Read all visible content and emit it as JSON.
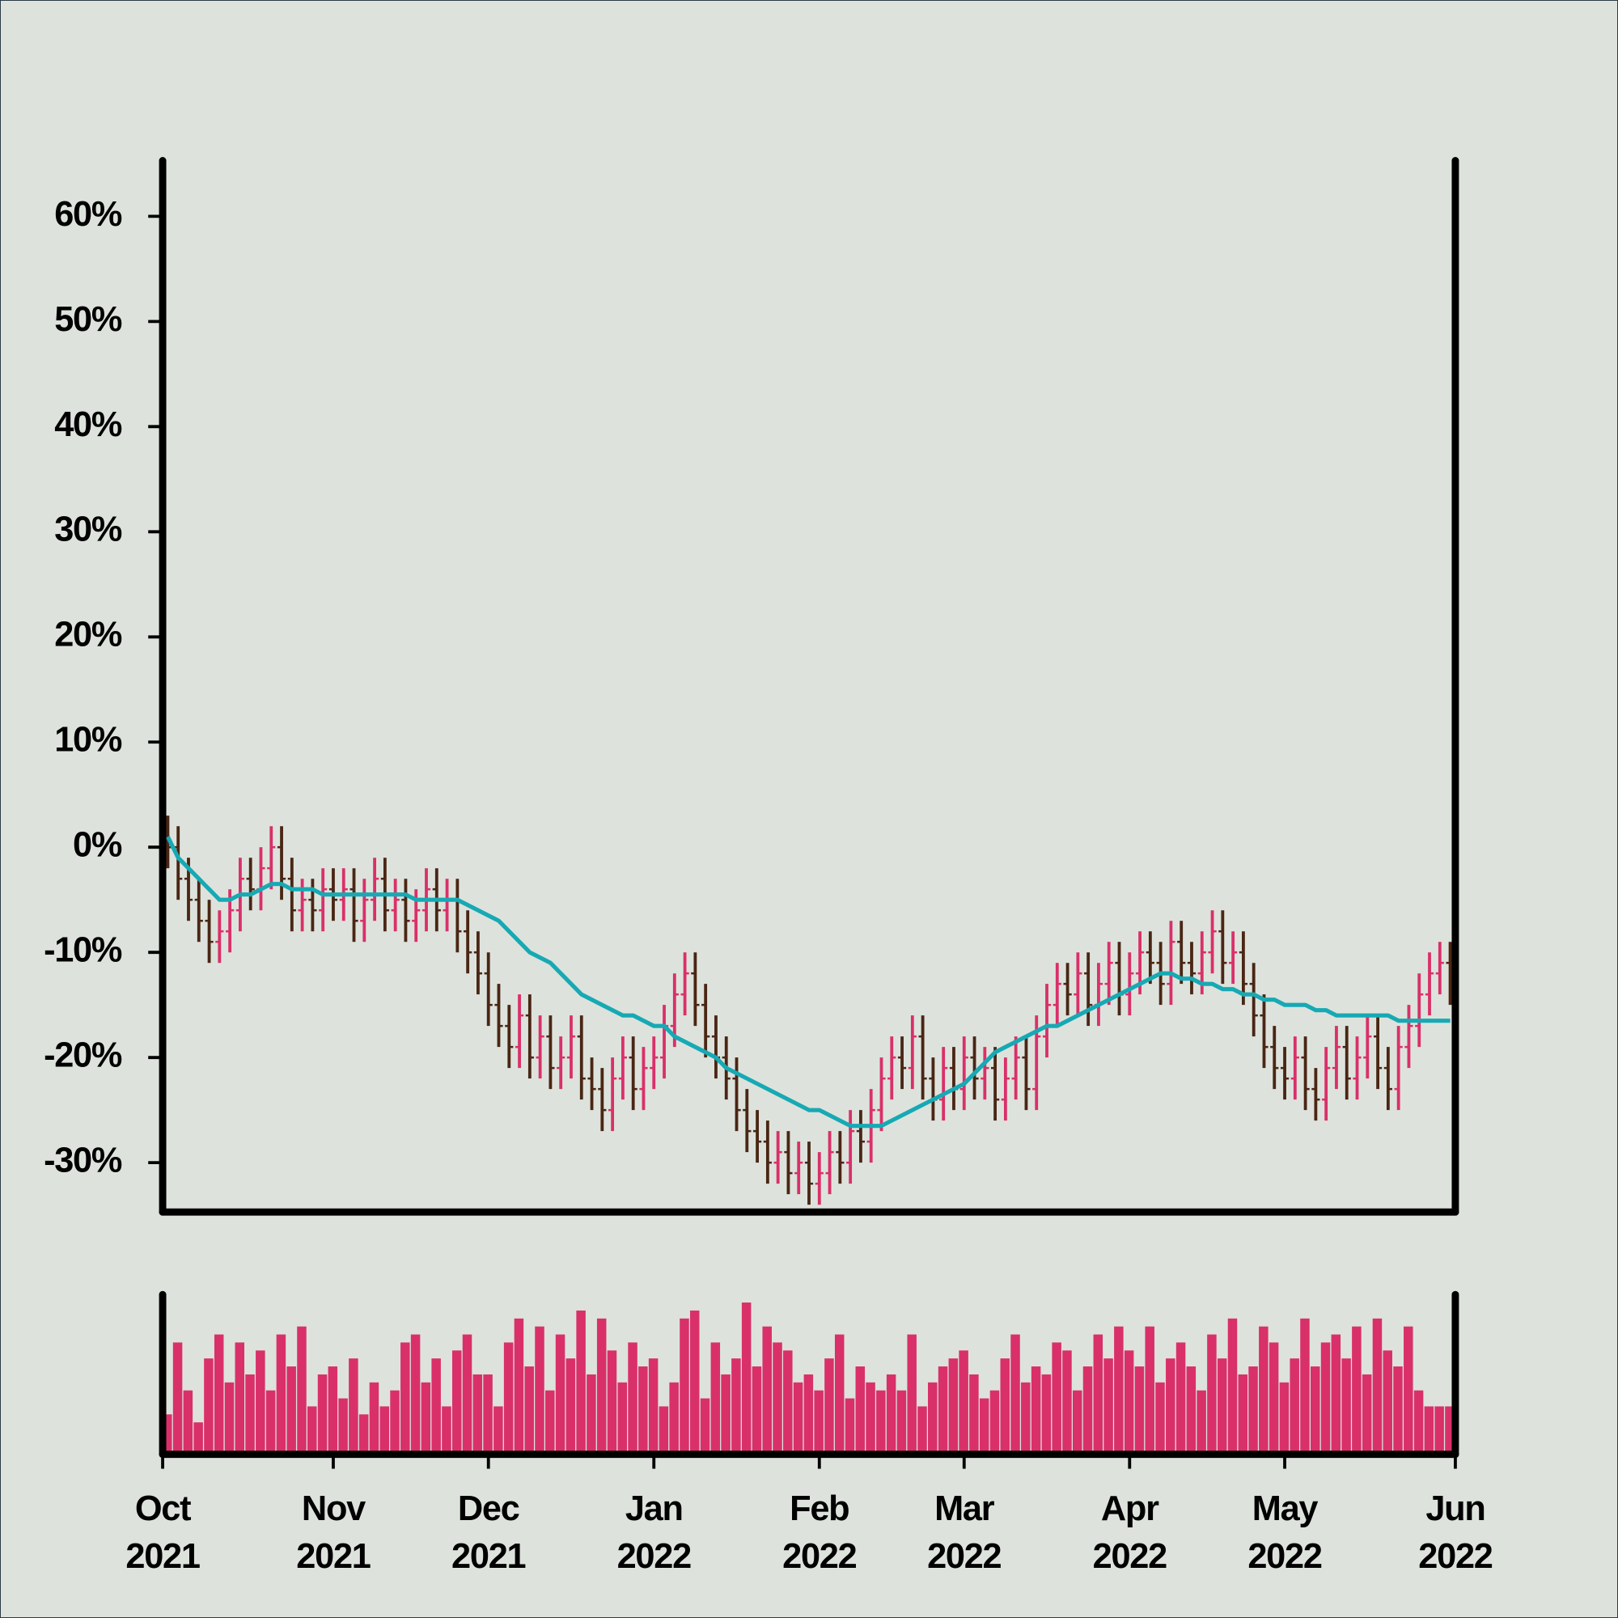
{
  "chart_data": {
    "type": "ohlc",
    "categories": [
      "Oct 2021",
      null,
      null,
      null,
      null,
      null,
      null,
      null,
      null,
      null,
      null,
      null,
      null,
      null,
      null,
      null,
      "Nov 2021",
      null,
      null,
      null,
      null,
      null,
      null,
      null,
      null,
      null,
      null,
      null,
      null,
      null,
      null,
      "Dec 2021",
      null,
      null,
      null,
      null,
      null,
      null,
      null,
      null,
      null,
      null,
      null,
      null,
      null,
      null,
      null,
      "Jan 2022",
      null,
      null,
      null,
      null,
      null,
      null,
      null,
      null,
      null,
      null,
      null,
      null,
      null,
      null,
      null,
      "Feb 2022",
      null,
      null,
      null,
      null,
      null,
      null,
      null,
      null,
      null,
      null,
      null,
      null,
      null,
      "Mar 2022",
      null,
      null,
      null,
      null,
      null,
      null,
      null,
      null,
      null,
      null,
      null,
      null,
      null,
      null,
      null,
      "Apr 2022",
      null,
      null,
      null,
      null,
      null,
      null,
      null,
      null,
      null,
      null,
      null,
      null,
      null,
      null,
      "May 2022",
      null,
      null,
      null,
      null,
      null,
      null,
      null,
      null,
      null,
      null,
      null,
      null,
      null,
      null,
      null,
      "Jun 2022"
    ],
    "open": [
      1,
      0,
      -3,
      -5,
      -7,
      -9,
      -8,
      -6,
      -3,
      -4,
      -2,
      0,
      -3,
      -6,
      -5,
      -6,
      -4,
      -5,
      -4,
      -7,
      -5,
      -3,
      -6,
      -5,
      -7,
      -6,
      -4,
      -6,
      -5,
      -8,
      -10,
      -12,
      -15,
      -17,
      -19,
      -16,
      -20,
      -18,
      -21,
      -20,
      -18,
      -22,
      -23,
      -25,
      -22,
      -20,
      -23,
      -21,
      -20,
      -17,
      -14,
      -12,
      -15,
      -18,
      -20,
      -22,
      -25,
      -27,
      -28,
      -30,
      -29,
      -31,
      -30,
      -32,
      -31,
      -29,
      -30,
      -27,
      -28,
      -25,
      -22,
      -20,
      -21,
      -18,
      -22,
      -24,
      -21,
      -23,
      -20,
      -22,
      -21,
      -24,
      -22,
      -20,
      -23,
      -18,
      -15,
      -13,
      -14,
      -12,
      -15,
      -13,
      -11,
      -14,
      -12,
      -10,
      -11,
      -13,
      -9,
      -11,
      -12,
      -10,
      -8,
      -11,
      -10,
      -13,
      -16,
      -19,
      -21,
      -22,
      -20,
      -23,
      -24,
      -21,
      -19,
      -22,
      -20,
      -18,
      -21,
      -23,
      -19,
      -17,
      -14,
      -12,
      -11
    ],
    "high": [
      3,
      2,
      -1,
      -3,
      -5,
      -6,
      -4,
      -1,
      -1,
      0,
      2,
      2,
      -1,
      -3,
      -3,
      -2,
      -2,
      -2,
      -2,
      -3,
      -1,
      -1,
      -3,
      -3,
      -4,
      -2,
      -2,
      -3,
      -3,
      -6,
      -8,
      -10,
      -13,
      -15,
      -14,
      -14,
      -16,
      -16,
      -18,
      -16,
      -16,
      -20,
      -21,
      -20,
      -18,
      -18,
      -19,
      -18,
      -15,
      -12,
      -10,
      -10,
      -13,
      -16,
      -18,
      -20,
      -23,
      -25,
      -26,
      -27,
      -27,
      -28,
      -28,
      -29,
      -27,
      -27,
      -25,
      -25,
      -23,
      -20,
      -18,
      -18,
      -16,
      -16,
      -20,
      -19,
      -19,
      -18,
      -18,
      -19,
      -19,
      -20,
      -18,
      -18,
      -16,
      -13,
      -11,
      -11,
      -10,
      -10,
      -11,
      -9,
      -9,
      -10,
      -8,
      -8,
      -9,
      -7,
      -7,
      -9,
      -8,
      -6,
      -6,
      -8,
      -8,
      -11,
      -14,
      -17,
      -19,
      -18,
      -18,
      -21,
      -19,
      -17,
      -17,
      -18,
      -16,
      -16,
      -19,
      -17,
      -15,
      -12,
      -10,
      -9,
      -9
    ],
    "low": [
      -2,
      -5,
      -7,
      -9,
      -11,
      -11,
      -10,
      -8,
      -6,
      -6,
      -4,
      -5,
      -8,
      -8,
      -8,
      -8,
      -7,
      -7,
      -9,
      -9,
      -7,
      -8,
      -8,
      -9,
      -9,
      -8,
      -8,
      -8,
      -10,
      -12,
      -14,
      -17,
      -19,
      -21,
      -21,
      -22,
      -22,
      -23,
      -23,
      -22,
      -24,
      -25,
      -27,
      -27,
      -24,
      -25,
      -25,
      -23,
      -22,
      -19,
      -16,
      -17,
      -20,
      -22,
      -24,
      -27,
      -29,
      -30,
      -32,
      -32,
      -33,
      -33,
      -34,
      -34,
      -33,
      -32,
      -32,
      -30,
      -30,
      -27,
      -24,
      -23,
      -23,
      -24,
      -26,
      -26,
      -25,
      -25,
      -24,
      -24,
      -26,
      -26,
      -24,
      -25,
      -25,
      -20,
      -17,
      -16,
      -16,
      -17,
      -17,
      -15,
      -16,
      -16,
      -14,
      -13,
      -15,
      -15,
      -13,
      -14,
      -14,
      -12,
      -13,
      -13,
      -15,
      -18,
      -21,
      -23,
      -24,
      -24,
      -25,
      -26,
      -26,
      -23,
      -24,
      -24,
      -22,
      -23,
      -25,
      -25,
      -21,
      -19,
      -16,
      -14,
      -15
    ],
    "close": [
      0,
      -3,
      -5,
      -7,
      -9,
      -8,
      -6,
      -3,
      -4,
      -2,
      0,
      -3,
      -6,
      -5,
      -6,
      -4,
      -5,
      -4,
      -7,
      -5,
      -3,
      -6,
      -5,
      -7,
      -6,
      -4,
      -6,
      -5,
      -8,
      -10,
      -12,
      -15,
      -17,
      -19,
      -16,
      -20,
      -18,
      -21,
      -20,
      -18,
      -22,
      -23,
      -25,
      -22,
      -20,
      -23,
      -21,
      -20,
      -17,
      -14,
      -12,
      -15,
      -18,
      -20,
      -22,
      -25,
      -27,
      -28,
      -30,
      -29,
      -31,
      -30,
      -32,
      -31,
      -29,
      -30,
      -27,
      -28,
      -25,
      -22,
      -20,
      -21,
      -18,
      -22,
      -24,
      -21,
      -23,
      -20,
      -22,
      -21,
      -24,
      -22,
      -20,
      -23,
      -18,
      -15,
      -13,
      -14,
      -12,
      -15,
      -13,
      -11,
      -14,
      -12,
      -10,
      -11,
      -13,
      -9,
      -11,
      -12,
      -10,
      -8,
      -11,
      -10,
      -13,
      -16,
      -19,
      -21,
      -22,
      -20,
      -23,
      -24,
      -21,
      -19,
      -22,
      -20,
      -18,
      -21,
      -23,
      -19,
      -17,
      -14,
      -12,
      -11,
      -13
    ],
    "up_color": "#d9306a",
    "down_color": "#4a2614",
    "ma": {
      "color": "#17a9b4",
      "values": [
        1,
        -1,
        -2,
        -3,
        -4,
        -5,
        -5,
        -4.5,
        -4.5,
        -4,
        -3.5,
        -3.5,
        -4,
        -4,
        -4,
        -4.5,
        -4.5,
        -4.5,
        -4.5,
        -4.5,
        -4.5,
        -4.5,
        -4.5,
        -4.5,
        -5,
        -5,
        -5,
        -5,
        -5,
        -5.5,
        -6,
        -6.5,
        -7,
        -8,
        -9,
        -10,
        -10.5,
        -11,
        -12,
        -13,
        -14,
        -14.5,
        -15,
        -15.5,
        -16,
        -16,
        -16.5,
        -17,
        -17,
        -18,
        -18.5,
        -19,
        -19.5,
        -20,
        -21,
        -21.5,
        -22,
        -22.5,
        -23,
        -23.5,
        -24,
        -24.5,
        -25,
        -25,
        -25.5,
        -26,
        -26.5,
        -26.5,
        -26.5,
        -26.5,
        -26,
        -25.5,
        -25,
        -24.5,
        -24,
        -23.5,
        -23,
        -22.5,
        -21.5,
        -20.5,
        -19.5,
        -19,
        -18.5,
        -18,
        -17.5,
        -17,
        -17,
        -16.5,
        -16,
        -15.5,
        -15,
        -14.5,
        -14,
        -13.5,
        -13,
        -12.5,
        -12,
        -12,
        -12.5,
        -12.5,
        -13,
        -13,
        -13.5,
        -13.5,
        -14,
        -14,
        -14.5,
        -14.5,
        -15,
        -15,
        -15,
        -15.5,
        -15.5,
        -16,
        -16,
        -16,
        -16,
        -16,
        -16,
        -16.5,
        -16.5,
        -16.5,
        -16.5,
        -16.5,
        -16.5
      ]
    },
    "volume": {
      "color": "#d9306a",
      "lim": [
        0,
        100
      ],
      "values": [
        25,
        70,
        40,
        20,
        60,
        75,
        45,
        70,
        50,
        65,
        40,
        75,
        55,
        80,
        30,
        50,
        55,
        35,
        60,
        25,
        45,
        30,
        40,
        70,
        75,
        45,
        60,
        30,
        65,
        75,
        50,
        50,
        30,
        70,
        85,
        55,
        80,
        40,
        75,
        60,
        90,
        50,
        85,
        65,
        45,
        70,
        55,
        60,
        30,
        45,
        85,
        90,
        35,
        70,
        50,
        60,
        95,
        55,
        80,
        70,
        65,
        45,
        50,
        40,
        60,
        75,
        35,
        55,
        45,
        40,
        50,
        40,
        75,
        30,
        45,
        55,
        60,
        65,
        50,
        35,
        40,
        60,
        75,
        45,
        55,
        50,
        70,
        65,
        40,
        55,
        75,
        60,
        80,
        65,
        55,
        80,
        45,
        60,
        70,
        55,
        40,
        75,
        60,
        85,
        50,
        55,
        80,
        70,
        45,
        60,
        85,
        55,
        70,
        75,
        60,
        80,
        50,
        85,
        65,
        55,
        80,
        40,
        30,
        30,
        30
      ]
    },
    "ylim": [
      -34.7,
      65.3
    ],
    "yticks": [
      {
        "value": -30,
        "label": "-30%"
      },
      {
        "value": -20,
        "label": "-20%"
      },
      {
        "value": -10,
        "label": "-10%"
      },
      {
        "value": 0,
        "label": "0%"
      },
      {
        "value": 10,
        "label": "10%"
      },
      {
        "value": 20,
        "label": "20%"
      },
      {
        "value": 30,
        "label": "30%"
      },
      {
        "value": 40,
        "label": "40%"
      },
      {
        "value": 50,
        "label": "50%"
      },
      {
        "value": 60,
        "label": "60%"
      }
    ]
  }
}
